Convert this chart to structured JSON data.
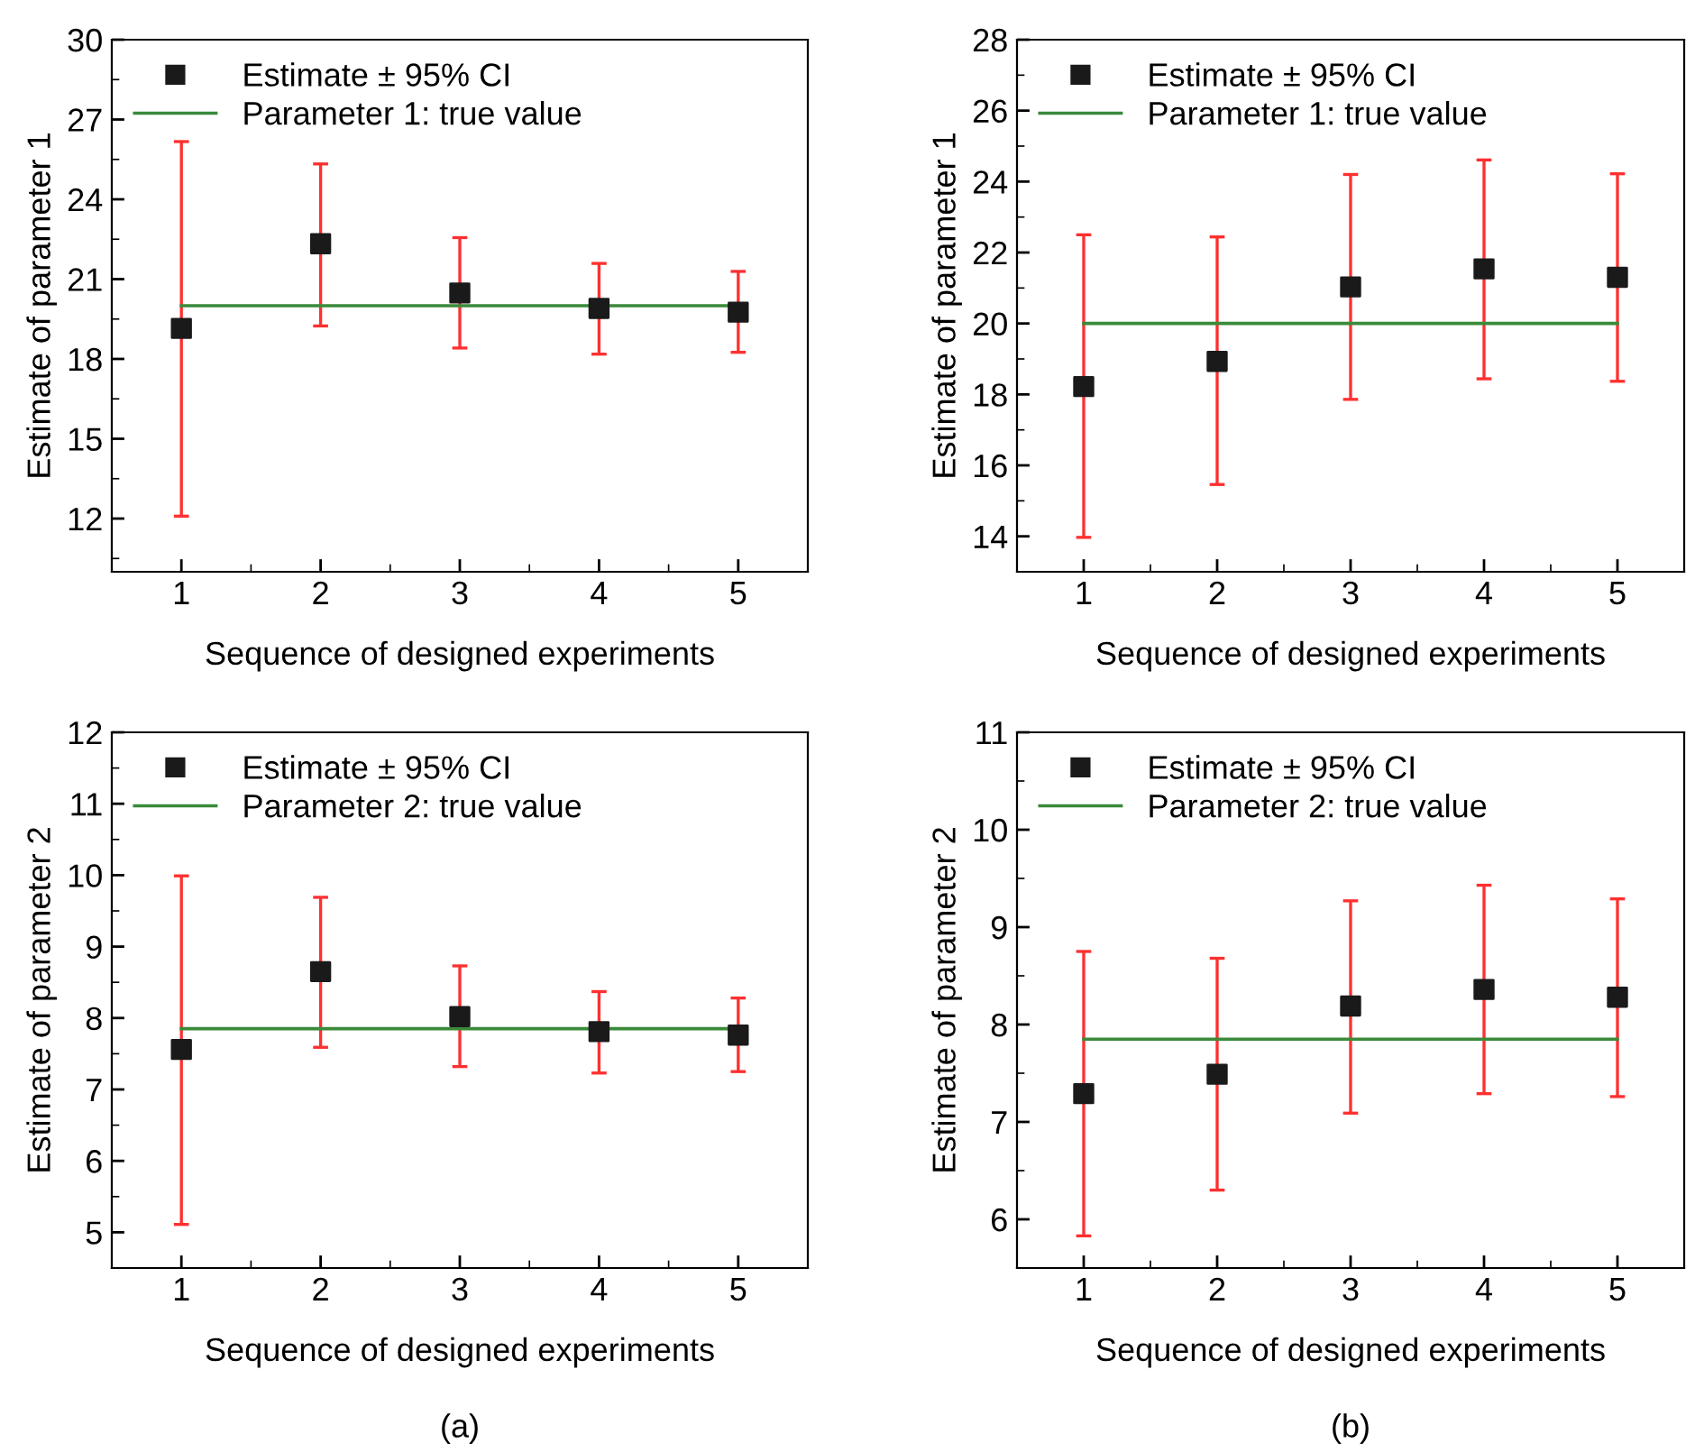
{
  "chart_data": [
    {
      "type": "scatter",
      "xlabel": "Sequence of designed experiments",
      "ylabel": "Estimate of parameter 1",
      "xlim": [
        0.5,
        5.5
      ],
      "xticks": [
        1,
        2,
        3,
        4,
        5
      ],
      "ylim": [
        10,
        30
      ],
      "yticks": [
        12,
        15,
        18,
        21,
        24,
        27,
        30
      ],
      "legend": "top left",
      "series": [
        {
          "name": "Estimate ± 95% CI",
          "marker": "square",
          "color": "#1a1a1a",
          "x": [
            1,
            2,
            3,
            4,
            5
          ],
          "values": [
            19.15,
            22.33,
            20.48,
            19.9,
            19.76
          ],
          "errors": [
            [
              12.09,
              26.17
            ],
            [
              19.24,
              25.33
            ],
            [
              18.41,
              22.56
            ],
            [
              18.18,
              21.59
            ],
            [
              18.25,
              21.29
            ]
          ]
        },
        {
          "name": "Parameter 1: true value",
          "type": "line",
          "marker": "none",
          "color": "#3a8a3a",
          "x": [
            1,
            5
          ],
          "values": [
            20.0,
            20.0
          ]
        }
      ]
    },
    {
      "type": "scatter",
      "xlabel": "Sequence of designed experiments",
      "ylabel": "Estimate of parameter 1",
      "xlim": [
        0.5,
        5.5
      ],
      "xticks": [
        1,
        2,
        3,
        4,
        5
      ],
      "ylim": [
        13,
        28
      ],
      "yticks": [
        14,
        16,
        18,
        20,
        22,
        24,
        26,
        28
      ],
      "legend": "top left",
      "series": [
        {
          "name": "Estimate ± 95% CI",
          "marker": "square",
          "color": "#1a1a1a",
          "x": [
            1,
            2,
            3,
            4,
            5
          ],
          "values": [
            18.22,
            18.93,
            21.03,
            21.54,
            21.3
          ],
          "errors": [
            [
              13.97,
              22.5
            ],
            [
              15.46,
              22.44
            ],
            [
              17.86,
              24.2
            ],
            [
              18.44,
              24.61
            ],
            [
              18.37,
              24.22
            ]
          ]
        },
        {
          "name": "Parameter 1: true value",
          "type": "line",
          "marker": "none",
          "color": "#3a8a3a",
          "x": [
            1,
            5
          ],
          "values": [
            20.0,
            20.0
          ]
        }
      ]
    },
    {
      "type": "scatter",
      "xlabel": "Sequence of designed experiments",
      "ylabel": "Estimate of parameter 2",
      "xlim": [
        0.5,
        5.5
      ],
      "xticks": [
        1,
        2,
        3,
        4,
        5
      ],
      "ylim": [
        4.5,
        12
      ],
      "yticks": [
        5,
        6,
        7,
        8,
        9,
        10,
        11,
        12
      ],
      "legend": "top left",
      "annotations": [
        "(a)"
      ],
      "series": [
        {
          "name": "Estimate ± 95% CI",
          "marker": "square",
          "color": "#1a1a1a",
          "x": [
            1,
            2,
            3,
            4,
            5
          ],
          "values": [
            7.56,
            8.65,
            8.02,
            7.81,
            7.76
          ],
          "errors": [
            [
              5.11,
              9.99
            ],
            [
              7.59,
              9.69
            ],
            [
              7.32,
              8.73
            ],
            [
              7.23,
              8.37
            ],
            [
              7.25,
              8.28
            ]
          ]
        },
        {
          "name": "Parameter 2: true value",
          "type": "line",
          "marker": "none",
          "color": "#3a8a3a",
          "x": [
            1,
            5
          ],
          "values": [
            7.85,
            7.85
          ]
        }
      ]
    },
    {
      "type": "scatter",
      "xlabel": "Sequence of designed experiments",
      "ylabel": "Estimate of parameter 2",
      "xlim": [
        0.5,
        5.5
      ],
      "xticks": [
        1,
        2,
        3,
        4,
        5
      ],
      "ylim": [
        5.5,
        11
      ],
      "yticks": [
        6,
        7,
        8,
        9,
        10,
        11
      ],
      "legend": "top left",
      "annotations": [
        "(b)"
      ],
      "series": [
        {
          "name": "Estimate ± 95% CI",
          "marker": "square",
          "color": "#1a1a1a",
          "x": [
            1,
            2,
            3,
            4,
            5
          ],
          "values": [
            7.29,
            7.49,
            8.19,
            8.36,
            8.28
          ],
          "errors": [
            [
              5.83,
              8.75
            ],
            [
              6.3,
              8.68
            ],
            [
              7.09,
              9.27
            ],
            [
              7.29,
              9.43
            ],
            [
              7.26,
              9.29
            ]
          ]
        },
        {
          "name": "Parameter 2: true value",
          "type": "line",
          "marker": "none",
          "color": "#3a8a3a",
          "x": [
            1,
            5
          ],
          "values": [
            7.85,
            7.85
          ]
        }
      ]
    }
  ]
}
